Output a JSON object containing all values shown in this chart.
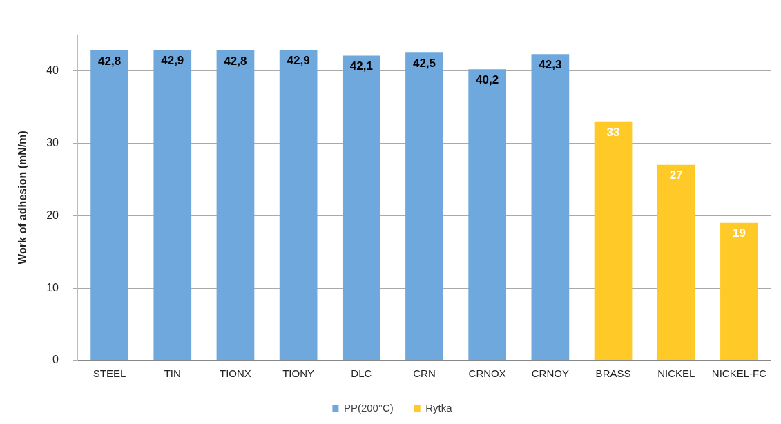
{
  "chart_data": {
    "type": "bar",
    "ylabel": "Work of adhesion (mN/m)",
    "categories": [
      "STEEL",
      "TIN",
      "TIONX",
      "TIONY",
      "DLC",
      "CRN",
      "CRNOX",
      "CRNOY",
      "BRASS",
      "NICKEL",
      "NICKEL-FC"
    ],
    "series": [
      {
        "name": "PP(200°C)",
        "color": "#6fa8dc",
        "values": [
          42.8,
          42.9,
          42.8,
          42.9,
          42.1,
          42.5,
          40.2,
          42.3,
          null,
          null,
          null
        ],
        "value_labels": [
          "42,8",
          "42,9",
          "42,8",
          "42,9",
          "42,1",
          "42,5",
          "40,2",
          "42,3",
          null,
          null,
          null
        ]
      },
      {
        "name": "Rytka",
        "color": "#ffca28",
        "values": [
          null,
          null,
          null,
          null,
          null,
          null,
          null,
          null,
          33,
          27,
          19
        ],
        "value_labels": [
          null,
          null,
          null,
          null,
          null,
          null,
          null,
          null,
          "33",
          "27",
          "19"
        ]
      }
    ],
    "ylim": [
      0,
      45
    ],
    "yticks": [
      0,
      10,
      20,
      30,
      40
    ],
    "grid": "y",
    "legend": "bottom"
  }
}
